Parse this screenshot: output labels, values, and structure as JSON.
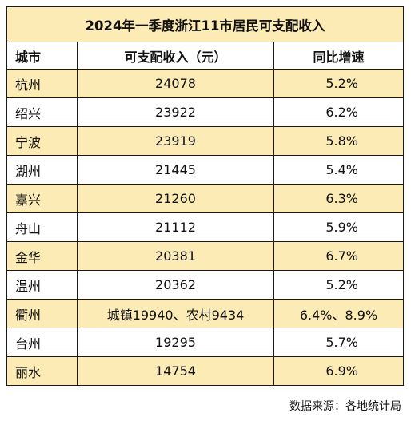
{
  "title": "2024年一季度浙江11市居民可支配收入",
  "headers": {
    "city": "城市",
    "income": "可支配收入（元）",
    "growth": "同比增速"
  },
  "rows": [
    {
      "city": "杭州",
      "income": "24078",
      "growth": "5.2%"
    },
    {
      "city": "绍兴",
      "income": "23922",
      "growth": "6.2%"
    },
    {
      "city": "宁波",
      "income": "23919",
      "growth": "5.8%"
    },
    {
      "city": "湖州",
      "income": "21445",
      "growth": "5.4%"
    },
    {
      "city": "嘉兴",
      "income": "21260",
      "growth": "6.3%"
    },
    {
      "city": "舟山",
      "income": "21112",
      "growth": "5.9%"
    },
    {
      "city": "金华",
      "income": "20381",
      "growth": "6.7%"
    },
    {
      "city": "温州",
      "income": "20362",
      "growth": "5.2%"
    },
    {
      "city": "衢州",
      "income": "城镇19940、农村9434",
      "growth": "6.4%、8.9%"
    },
    {
      "city": "台州",
      "income": "19295",
      "growth": "5.7%"
    },
    {
      "city": "丽水",
      "income": "14754",
      "growth": "6.9%"
    }
  ],
  "source": "数据来源：各地统计局",
  "colors": {
    "row_shade": "#fcebb4",
    "border": "#1a1a1a"
  }
}
